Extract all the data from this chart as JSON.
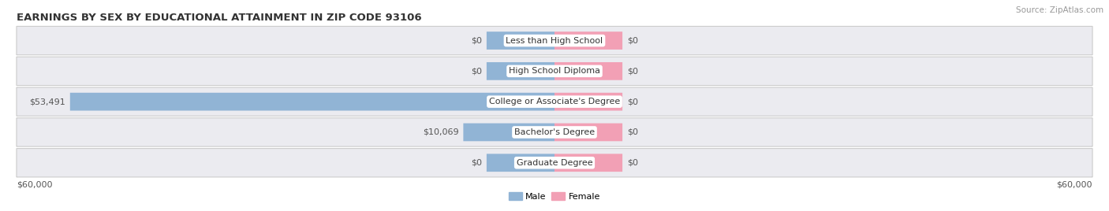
{
  "title": "EARNINGS BY SEX BY EDUCATIONAL ATTAINMENT IN ZIP CODE 93106",
  "source": "Source: ZipAtlas.com",
  "categories": [
    "Less than High School",
    "High School Diploma",
    "College or Associate's Degree",
    "Bachelor's Degree",
    "Graduate Degree"
  ],
  "male_values": [
    0,
    0,
    53491,
    10069,
    0
  ],
  "female_values": [
    0,
    0,
    0,
    0,
    0
  ],
  "male_labels": [
    "$0",
    "$0",
    "$53,491",
    "$10,069",
    "$0"
  ],
  "female_labels": [
    "$0",
    "$0",
    "$0",
    "$0",
    "$0"
  ],
  "male_color": "#91b4d5",
  "female_color": "#f2a0b5",
  "row_bg_color": "#ebebf0",
  "row_bg_inner": "#f5f5f8",
  "max_val": 60000,
  "stub_val": 7500,
  "xlim_left": -60000,
  "xlim_right": 60000,
  "xlabel_left": "$60,000",
  "xlabel_right": "$60,000",
  "title_fontsize": 9.5,
  "label_fontsize": 8,
  "cat_fontsize": 8,
  "tick_fontsize": 8,
  "source_fontsize": 7.5
}
